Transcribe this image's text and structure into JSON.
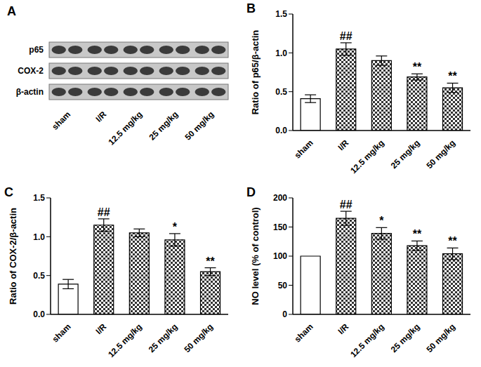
{
  "chart_data": [
    {
      "type": "blot",
      "title": "A",
      "rows": [
        "p65",
        "COX-2",
        "β-actin"
      ],
      "categories": [
        "sham",
        "I/R",
        "12.5 mg/kg",
        "25 mg/kg",
        "50 mg/kg"
      ]
    },
    {
      "type": "bar",
      "title": "B",
      "y_label": "Ratio of p65/β-actin",
      "categories": [
        "sham",
        "I/R",
        "12.5 mg/kg",
        "25 mg/kg",
        "50 mg/kg"
      ],
      "values": [
        0.41,
        1.05,
        0.9,
        0.69,
        0.55
      ],
      "errors": [
        0.05,
        0.08,
        0.06,
        0.04,
        0.06
      ],
      "annotations": [
        null,
        "##",
        null,
        "**",
        "**"
      ],
      "colors": [
        "#ffffff",
        "#333333",
        "#333333",
        "#333333",
        "#333333"
      ],
      "ylim": [
        0,
        1.5
      ],
      "yticks": [
        {
          "value": 0,
          "label": "0.0"
        },
        0.5,
        {
          "value": 1,
          "label": "1.0"
        },
        1.5
      ]
    },
    {
      "type": "bar",
      "title": "C",
      "y_label": "Ratio of COX-2/β-actin",
      "categories": [
        "sham",
        "I/R",
        "12.5 mg/kg",
        "25 mg/kg",
        "50 mg/kg"
      ],
      "values": [
        0.39,
        1.15,
        1.05,
        0.96,
        0.55
      ],
      "errors": [
        0.06,
        0.08,
        0.05,
        0.08,
        0.05
      ],
      "annotations": [
        null,
        "##",
        null,
        "*",
        "**"
      ],
      "colors": [
        "#ffffff",
        "#333333",
        "#333333",
        "#333333",
        "#333333"
      ],
      "ylim": [
        0,
        1.5
      ],
      "yticks": [
        {
          "value": 0,
          "label": "0.0"
        },
        0.5,
        {
          "value": 1,
          "label": "1.0"
        },
        1.5
      ]
    },
    {
      "type": "bar",
      "title": "D",
      "y_label": "NO level (% of control)",
      "categories": [
        "sham",
        "I/R",
        "12.5 mg/kg",
        "25 mg/kg",
        "50 mg/kg"
      ],
      "values": [
        100,
        165,
        139,
        118,
        104
      ],
      "errors": [
        0,
        12,
        10,
        8,
        10
      ],
      "annotations": [
        null,
        "##",
        "*",
        "**",
        "**"
      ],
      "colors": [
        "#ffffff",
        "#333333",
        "#333333",
        "#333333",
        "#333333"
      ],
      "ylim": [
        0,
        200
      ],
      "yticks": [
        0,
        50,
        100,
        150,
        200
      ]
    }
  ]
}
